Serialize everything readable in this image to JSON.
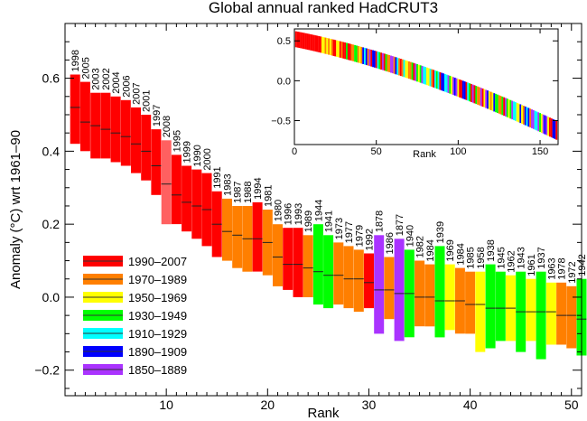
{
  "chart_data": [
    {
      "id": "main",
      "type": "bar",
      "title": "Global annual ranked HadCRUT3",
      "xlabel": "Rank",
      "ylabel": "Anomaly (°C) wrt 1961–90",
      "xlim": [
        0,
        51
      ],
      "ylim": [
        -0.27,
        0.75
      ],
      "xticks": [
        10,
        20,
        30,
        40,
        50
      ],
      "yticks": [
        -0.2,
        0.0,
        0.2,
        0.4,
        0.6
      ],
      "ytick_labels": [
        "−0.2",
        "0.0",
        "0.2",
        "0.4",
        "0.6"
      ],
      "legend": {
        "placement": "bottom-left",
        "entries": [
          {
            "label": "1990–2007",
            "color": "#ff0000"
          },
          {
            "label": "1970–1989",
            "color": "#ff7f00"
          },
          {
            "label": "1950–1969",
            "color": "#ffff00"
          },
          {
            "label": "1930–1949",
            "color": "#00ff00"
          },
          {
            "label": "1910–1929",
            "color": "#00ffff"
          },
          {
            "label": "1890–1909",
            "color": "#0000ff"
          },
          {
            "label": "1850–1889",
            "color": "#aa33ff"
          }
        ]
      },
      "bars": [
        {
          "rank": 1,
          "year": "1998",
          "value": 0.52,
          "low": 0.42,
          "high": 0.61,
          "color": "#ff0000"
        },
        {
          "rank": 2,
          "year": "2005",
          "value": 0.48,
          "low": 0.4,
          "high": 0.59,
          "color": "#ff0000"
        },
        {
          "rank": 3,
          "year": "2003",
          "value": 0.47,
          "low": 0.38,
          "high": 0.56,
          "color": "#ff0000"
        },
        {
          "rank": 4,
          "year": "2002",
          "value": 0.46,
          "low": 0.38,
          "high": 0.56,
          "color": "#ff0000"
        },
        {
          "rank": 5,
          "year": "2004",
          "value": 0.45,
          "low": 0.37,
          "high": 0.55,
          "color": "#ff0000"
        },
        {
          "rank": 6,
          "year": "2006",
          "value": 0.44,
          "low": 0.36,
          "high": 0.54,
          "color": "#ff0000"
        },
        {
          "rank": 7,
          "year": "2007",
          "value": 0.42,
          "low": 0.34,
          "high": 0.52,
          "color": "#ff0000"
        },
        {
          "rank": 8,
          "year": "2001",
          "value": 0.4,
          "low": 0.32,
          "high": 0.5,
          "color": "#ff0000"
        },
        {
          "rank": 9,
          "year": "1997",
          "value": 0.36,
          "low": 0.28,
          "high": 0.46,
          "color": "#ff0000"
        },
        {
          "rank": 10,
          "year": "2008",
          "value": 0.31,
          "low": 0.2,
          "high": 0.43,
          "color": "#ff6060"
        },
        {
          "rank": 11,
          "year": "1995",
          "value": 0.28,
          "low": 0.2,
          "high": 0.39,
          "color": "#ff0000"
        },
        {
          "rank": 12,
          "year": "1999",
          "value": 0.26,
          "low": 0.18,
          "high": 0.36,
          "color": "#ff0000"
        },
        {
          "rank": 13,
          "year": "1990",
          "value": 0.25,
          "low": 0.16,
          "high": 0.35,
          "color": "#ff0000"
        },
        {
          "rank": 14,
          "year": "2000",
          "value": 0.24,
          "low": 0.14,
          "high": 0.34,
          "color": "#ff0000"
        },
        {
          "rank": 15,
          "year": "1991",
          "value": 0.2,
          "low": 0.11,
          "high": 0.29,
          "color": "#ff0000"
        },
        {
          "rank": 16,
          "year": "1983",
          "value": 0.18,
          "low": 0.1,
          "high": 0.27,
          "color": "#ff7f00"
        },
        {
          "rank": 17,
          "year": "1987",
          "value": 0.17,
          "low": 0.08,
          "high": 0.25,
          "color": "#ff7f00"
        },
        {
          "rank": 18,
          "year": "1988",
          "value": 0.16,
          "low": 0.07,
          "high": 0.25,
          "color": "#ff7f00"
        },
        {
          "rank": 19,
          "year": "1994",
          "value": 0.16,
          "low": 0.07,
          "high": 0.26,
          "color": "#ff0000"
        },
        {
          "rank": 20,
          "year": "1981",
          "value": 0.15,
          "low": 0.06,
          "high": 0.24,
          "color": "#ff7f00"
        },
        {
          "rank": 21,
          "year": "1980",
          "value": 0.11,
          "low": 0.03,
          "high": 0.2,
          "color": "#ff7f00"
        },
        {
          "rank": 22,
          "year": "1996",
          "value": 0.09,
          "low": 0.02,
          "high": 0.19,
          "color": "#ff0000"
        },
        {
          "rank": 23,
          "year": "1993",
          "value": 0.09,
          "low": 0.0,
          "high": 0.19,
          "color": "#ff0000"
        },
        {
          "rank": 24,
          "year": "1989",
          "value": 0.08,
          "low": 0.0,
          "high": 0.17,
          "color": "#ff7f00"
        },
        {
          "rank": 25,
          "year": "1944",
          "value": 0.07,
          "low": -0.02,
          "high": 0.2,
          "color": "#00ff00"
        },
        {
          "rank": 26,
          "year": "1941",
          "value": 0.06,
          "low": -0.03,
          "high": 0.17,
          "color": "#00ff00"
        },
        {
          "rank": 27,
          "year": "1973",
          "value": 0.06,
          "low": -0.02,
          "high": 0.15,
          "color": "#ff7f00"
        },
        {
          "rank": 28,
          "year": "1977",
          "value": 0.05,
          "low": -0.03,
          "high": 0.14,
          "color": "#ff7f00"
        },
        {
          "rank": 29,
          "year": "1979",
          "value": 0.05,
          "low": -0.04,
          "high": 0.13,
          "color": "#ff7f00"
        },
        {
          "rank": 30,
          "year": "1992",
          "value": 0.04,
          "low": -0.03,
          "high": 0.12,
          "color": "#ff0000"
        },
        {
          "rank": 31,
          "year": "1878",
          "value": 0.02,
          "low": -0.1,
          "high": 0.17,
          "color": "#aa33ff"
        },
        {
          "rank": 32,
          "year": "1986",
          "value": 0.02,
          "low": -0.06,
          "high": 0.11,
          "color": "#ff7f00"
        },
        {
          "rank": 33,
          "year": "1877",
          "value": 0.01,
          "low": -0.12,
          "high": 0.16,
          "color": "#aa33ff"
        },
        {
          "rank": 34,
          "year": "1940",
          "value": 0.01,
          "low": -0.11,
          "high": 0.13,
          "color": "#00ff00"
        },
        {
          "rank": 35,
          "year": "1982",
          "value": 0.0,
          "low": -0.08,
          "high": 0.1,
          "color": "#ff7f00"
        },
        {
          "rank": 36,
          "year": "1984",
          "value": 0.0,
          "low": -0.08,
          "high": 0.09,
          "color": "#ff7f00"
        },
        {
          "rank": 37,
          "year": "1939",
          "value": -0.01,
          "low": -0.11,
          "high": 0.14,
          "color": "#00ff00"
        },
        {
          "rank": 38,
          "year": "1969",
          "value": -0.01,
          "low": -0.09,
          "high": 0.09,
          "color": "#ffff00"
        },
        {
          "rank": 39,
          "year": "1984",
          "value": -0.01,
          "low": -0.1,
          "high": 0.08,
          "color": "#ff7f00"
        },
        {
          "rank": 40,
          "year": "1985",
          "value": -0.02,
          "low": -0.1,
          "high": 0.07,
          "color": "#ff7f00"
        },
        {
          "rank": 41,
          "year": "1958",
          "value": -0.02,
          "low": -0.15,
          "high": 0.07,
          "color": "#ffff00"
        },
        {
          "rank": 42,
          "year": "1938",
          "value": -0.03,
          "low": -0.14,
          "high": 0.09,
          "color": "#00ff00"
        },
        {
          "rank": 43,
          "year": "1945",
          "value": -0.03,
          "low": -0.12,
          "high": 0.07,
          "color": "#00ff00"
        },
        {
          "rank": 44,
          "year": "1962",
          "value": -0.03,
          "low": -0.12,
          "high": 0.06,
          "color": "#ffff00"
        },
        {
          "rank": 45,
          "year": "1943",
          "value": -0.04,
          "low": -0.15,
          "high": 0.07,
          "color": "#00ff00"
        },
        {
          "rank": 46,
          "year": "1961",
          "value": -0.04,
          "low": -0.12,
          "high": 0.05,
          "color": "#ffff00"
        },
        {
          "rank": 47,
          "year": "1937",
          "value": -0.04,
          "low": -0.17,
          "high": 0.07,
          "color": "#00ff00"
        },
        {
          "rank": 48,
          "year": "1963",
          "value": -0.04,
          "low": -0.13,
          "high": 0.04,
          "color": "#ffff00"
        },
        {
          "rank": 49,
          "year": "1978",
          "value": -0.05,
          "low": -0.13,
          "high": 0.04,
          "color": "#ff7f00"
        },
        {
          "rank": 50,
          "year": "1972",
          "value": -0.05,
          "low": -0.14,
          "high": 0.03,
          "color": "#ff7f00"
        },
        {
          "rank": 51,
          "year": "1942",
          "value": -0.06,
          "low": -0.16,
          "high": 0.05,
          "color": "#00ff00"
        }
      ]
    },
    {
      "id": "inset",
      "type": "bar",
      "title": "",
      "xlabel": "Rank",
      "ylabel": "",
      "xlim": [
        0,
        161
      ],
      "ylim": [
        -0.8,
        0.65
      ],
      "xticks": [
        0,
        50,
        100,
        150
      ],
      "yticks": [
        -0.5,
        0.0,
        0.5
      ],
      "ytick_labels": [
        "−0.5",
        "0.0",
        "0.5"
      ],
      "series_description_values": {
        "ranks": [
          1,
          160
        ],
        "start_value": 0.52,
        "end_value": -0.62,
        "halfwidth_start": 0.1,
        "halfwidth_end": 0.12
      }
    }
  ]
}
